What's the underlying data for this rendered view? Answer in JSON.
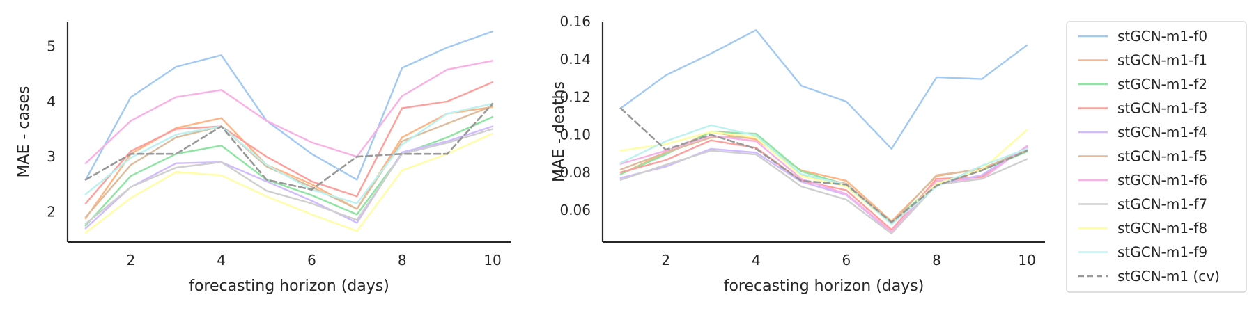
{
  "chart_data": {
    "type": "line",
    "legend": {
      "placement": "right",
      "entries": [
        {
          "name": "stGCN-m1-f0",
          "color": "#a1c9f4",
          "dashed": false
        },
        {
          "name": "stGCN-m1-f1",
          "color": "#ffb482",
          "dashed": false
        },
        {
          "name": "stGCN-m1-f2",
          "color": "#8de5a1",
          "dashed": false
        },
        {
          "name": "stGCN-m1-f3",
          "color": "#ff9f9b",
          "dashed": false
        },
        {
          "name": "stGCN-m1-f4",
          "color": "#d0bbff",
          "dashed": false
        },
        {
          "name": "stGCN-m1-f5",
          "color": "#debb9b",
          "dashed": false
        },
        {
          "name": "stGCN-m1-f6",
          "color": "#fab0e4",
          "dashed": false
        },
        {
          "name": "stGCN-m1-f7",
          "color": "#cfcfcf",
          "dashed": false
        },
        {
          "name": "stGCN-m1-f8",
          "color": "#fffea3",
          "dashed": false
        },
        {
          "name": "stGCN-m1-f9",
          "color": "#b9f2f0",
          "dashed": false
        },
        {
          "name": "stGCN-m1 (cv)",
          "color": "#999999",
          "dashed": true
        }
      ]
    },
    "panels": [
      {
        "xlabel": "forecasting horizon (days)",
        "ylabel": "MAE - cases",
        "xlim": [
          0.6,
          10.4
        ],
        "ylim": [
          1.45,
          5.45
        ],
        "xticks": [
          2,
          4,
          6,
          8,
          10
        ],
        "yticks": [
          2,
          3,
          4,
          5
        ],
        "ytick_labels": [
          "2",
          "3",
          "4",
          "5"
        ],
        "grid": false,
        "x": [
          1,
          2,
          3,
          4,
          5,
          6,
          7,
          8,
          9,
          10
        ],
        "series": [
          {
            "name": "stGCN-m1-f0",
            "values": [
              2.58,
              4.08,
              4.63,
              4.84,
              3.65,
              3.05,
              2.58,
              4.61,
              4.98,
              5.27
            ]
          },
          {
            "name": "stGCN-m1-f1",
            "values": [
              1.88,
              3.05,
              3.52,
              3.7,
              2.85,
              2.5,
              2.05,
              3.35,
              3.78,
              3.9
            ]
          },
          {
            "name": "stGCN-m1-f2",
            "values": [
              1.75,
              2.65,
              3.05,
              3.2,
              2.58,
              2.3,
              1.95,
              3.05,
              3.35,
              3.72
            ]
          },
          {
            "name": "stGCN-m1-f3",
            "values": [
              2.15,
              3.1,
              3.5,
              3.55,
              3.0,
              2.55,
              2.28,
              3.88,
              4.0,
              4.35
            ]
          },
          {
            "name": "stGCN-m1-f4",
            "values": [
              1.7,
              2.45,
              2.88,
              2.9,
              2.55,
              2.2,
              1.8,
              3.08,
              3.28,
              3.55
            ]
          },
          {
            "name": "stGCN-m1-f5",
            "values": [
              1.9,
              2.85,
              3.35,
              3.55,
              2.82,
              2.45,
              2.05,
              3.28,
              3.6,
              3.92
            ]
          },
          {
            "name": "stGCN-m1-f6",
            "values": [
              2.88,
              3.65,
              4.08,
              4.21,
              3.65,
              3.26,
              3.0,
              4.1,
              4.58,
              4.74
            ]
          },
          {
            "name": "stGCN-m1-f7",
            "values": [
              1.78,
              2.45,
              2.8,
              2.9,
              2.38,
              2.15,
              1.85,
              3.05,
              3.25,
              3.5
            ]
          },
          {
            "name": "stGCN-m1-f8",
            "values": [
              1.62,
              2.25,
              2.72,
              2.66,
              2.28,
              1.95,
              1.65,
              2.75,
              3.05,
              3.42
            ]
          },
          {
            "name": "stGCN-m1-f9",
            "values": [
              2.32,
              2.98,
              3.4,
              3.55,
              2.85,
              2.4,
              2.15,
              3.22,
              3.78,
              3.96
            ]
          },
          {
            "name": "stGCN-m1 (cv)",
            "values": [
              2.58,
              3.05,
              3.05,
              3.55,
              2.58,
              2.4,
              3.0,
              3.05,
              3.05,
              3.96
            ]
          }
        ]
      },
      {
        "xlabel": "forecasting horizon (days)",
        "ylabel": "MAE - deaths",
        "xlim": [
          0.6,
          10.4
        ],
        "ylim": [
          0.043,
          0.16
        ],
        "xticks": [
          2,
          4,
          6,
          8,
          10
        ],
        "yticks": [
          0.06,
          0.08,
          0.1,
          0.12,
          0.14,
          0.16
        ],
        "ytick_labels": [
          "0.06",
          "0.08",
          "0.10",
          "0.12",
          "0.14",
          "0.16"
        ],
        "grid": false,
        "x": [
          1,
          2,
          3,
          4,
          5,
          6,
          7,
          8,
          9,
          10
        ],
        "series": [
          {
            "name": "stGCN-m1-f0",
            "values": [
              0.114,
              0.1315,
              0.143,
              0.1555,
              0.126,
              0.1175,
              0.0925,
              0.1305,
              0.1295,
              0.1475
            ]
          },
          {
            "name": "stGCN-m1-f1",
            "values": [
              0.079,
              0.0905,
              0.1015,
              0.0975,
              0.081,
              0.0755,
              0.054,
              0.078,
              0.082,
              0.0915
            ]
          },
          {
            "name": "stGCN-m1-f2",
            "values": [
              0.079,
              0.0895,
              0.1015,
              0.1005,
              0.0805,
              0.0735,
              0.0535,
              0.074,
              0.081,
              0.091
            ]
          },
          {
            "name": "stGCN-m1-f3",
            "values": [
              0.08,
              0.0865,
              0.097,
              0.093,
              0.0755,
              0.0705,
              0.0495,
              0.0765,
              0.0775,
              0.0935
            ]
          },
          {
            "name": "stGCN-m1-f4",
            "values": [
              0.077,
              0.083,
              0.0925,
              0.0905,
              0.075,
              0.068,
              0.048,
              0.0735,
              0.0785,
              0.0935
            ]
          },
          {
            "name": "stGCN-m1-f5",
            "values": [
              0.0815,
              0.0905,
              0.0985,
              0.099,
              0.0785,
              0.074,
              0.053,
              0.0785,
              0.0815,
              0.0925
            ]
          },
          {
            "name": "stGCN-m1-f6",
            "values": [
              0.0845,
              0.0915,
              0.0995,
              0.0965,
              0.0765,
              0.0685,
              0.0485,
              0.0755,
              0.0765,
              0.094
            ]
          },
          {
            "name": "stGCN-m1-f7",
            "values": [
              0.076,
              0.084,
              0.0915,
              0.0895,
              0.0725,
              0.0655,
              0.0475,
              0.0735,
              0.0765,
              0.087
            ]
          },
          {
            "name": "stGCN-m1-f8",
            "values": [
              0.0915,
              0.095,
              0.1015,
              0.0985,
              0.078,
              0.0725,
              0.0525,
              0.074,
              0.0815,
              0.1025
            ]
          },
          {
            "name": "stGCN-m1-f9",
            "values": [
              0.085,
              0.0965,
              0.105,
              0.0995,
              0.079,
              0.0735,
              0.0525,
              0.0725,
              0.0835,
              0.0925
            ]
          },
          {
            "name": "stGCN-m1 (cv)",
            "values": [
              0.114,
              0.092,
              0.1,
              0.0925,
              0.0755,
              0.0735,
              0.0535,
              0.073,
              0.081,
              0.0915
            ]
          }
        ]
      }
    ]
  }
}
